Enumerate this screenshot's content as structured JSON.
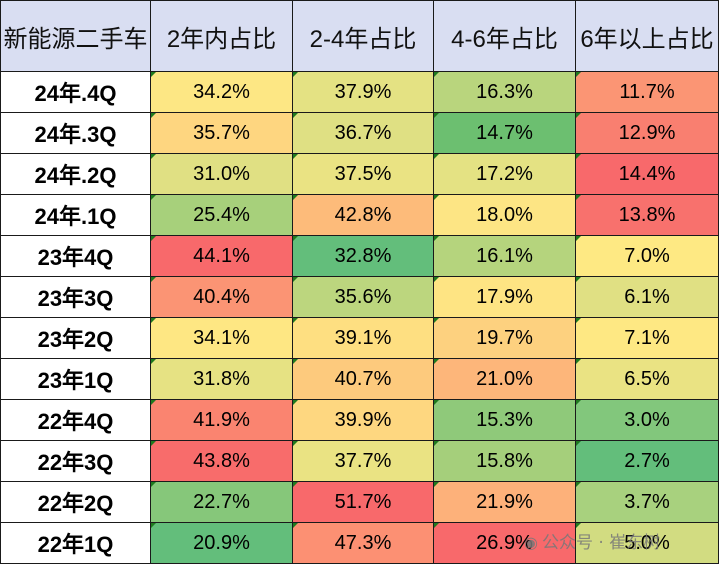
{
  "chart_data": {
    "type": "table",
    "corner_label": "新能源二手车",
    "columns": [
      "2年内占比",
      "2-4年占比",
      "4-6年占比",
      "6年以上占比"
    ],
    "rows": [
      {
        "label": "24年.4Q",
        "values": [
          "34.2%",
          "37.9%",
          "16.3%",
          "11.7%"
        ],
        "colors": [
          "#fde784",
          "#e4e283",
          "#b9d57d",
          "#fb9574"
        ]
      },
      {
        "label": "24年.3Q",
        "values": [
          "35.7%",
          "36.7%",
          "14.7%",
          "12.9%"
        ],
        "colors": [
          "#fed680",
          "#dfe083",
          "#6cbf70",
          "#f97f70"
        ]
      },
      {
        "label": "24年.2Q",
        "values": [
          "31.0%",
          "37.5%",
          "17.2%",
          "14.4%"
        ],
        "colors": [
          "#e0e083",
          "#eae383",
          "#e4e283",
          "#f8696b"
        ]
      },
      {
        "label": "24年.1Q",
        "values": [
          "25.4%",
          "42.8%",
          "18.0%",
          "13.8%"
        ],
        "colors": [
          "#a7d07b",
          "#fdbb7a",
          "#fde584",
          "#f8716d"
        ]
      },
      {
        "label": "23年4Q",
        "values": [
          "44.1%",
          "32.8%",
          "16.1%",
          "7.0%"
        ],
        "colors": [
          "#f8696b",
          "#63be7b",
          "#b5d47d",
          "#fee983"
        ]
      },
      {
        "label": "23年3Q",
        "values": [
          "40.4%",
          "35.6%",
          "17.9%",
          "6.1%"
        ],
        "colors": [
          "#fb9474",
          "#bcd67e",
          "#fee483",
          "#e0e083"
        ]
      },
      {
        "label": "23年2Q",
        "values": [
          "34.1%",
          "39.1%",
          "19.7%",
          "7.1%"
        ],
        "colors": [
          "#fee783",
          "#fedf81",
          "#fdd17f",
          "#fee883"
        ]
      },
      {
        "label": "23年1Q",
        "values": [
          "31.8%",
          "40.7%",
          "21.0%",
          "6.5%"
        ],
        "colors": [
          "#e6e283",
          "#fdca7d",
          "#fdb67a",
          "#eae383"
        ]
      },
      {
        "label": "22年4Q",
        "values": [
          "41.9%",
          "39.9%",
          "15.3%",
          "3.0%"
        ],
        "colors": [
          "#fa8470",
          "#fed780",
          "#8fc97a",
          "#82c77c"
        ]
      },
      {
        "label": "22年3Q",
        "values": [
          "43.8%",
          "37.7%",
          "15.8%",
          "2.7%"
        ],
        "colors": [
          "#f86c6b",
          "#eae383",
          "#a5cf7b",
          "#63be7b"
        ]
      },
      {
        "label": "22年2Q",
        "values": [
          "22.7%",
          "51.7%",
          "21.9%",
          "3.7%"
        ],
        "colors": [
          "#86c77a",
          "#f8696b",
          "#fdb17a",
          "#a8d17e"
        ]
      },
      {
        "label": "22年1Q",
        "values": [
          "20.9%",
          "47.3%",
          "26.9%",
          "5.0%"
        ],
        "colors": [
          "#63be7b",
          "#fc9073",
          "#f8696b",
          "#d2dc81"
        ]
      }
    ]
  },
  "watermark": {
    "icon": "wechat-icon",
    "text": "公众号 · 崔东树"
  }
}
